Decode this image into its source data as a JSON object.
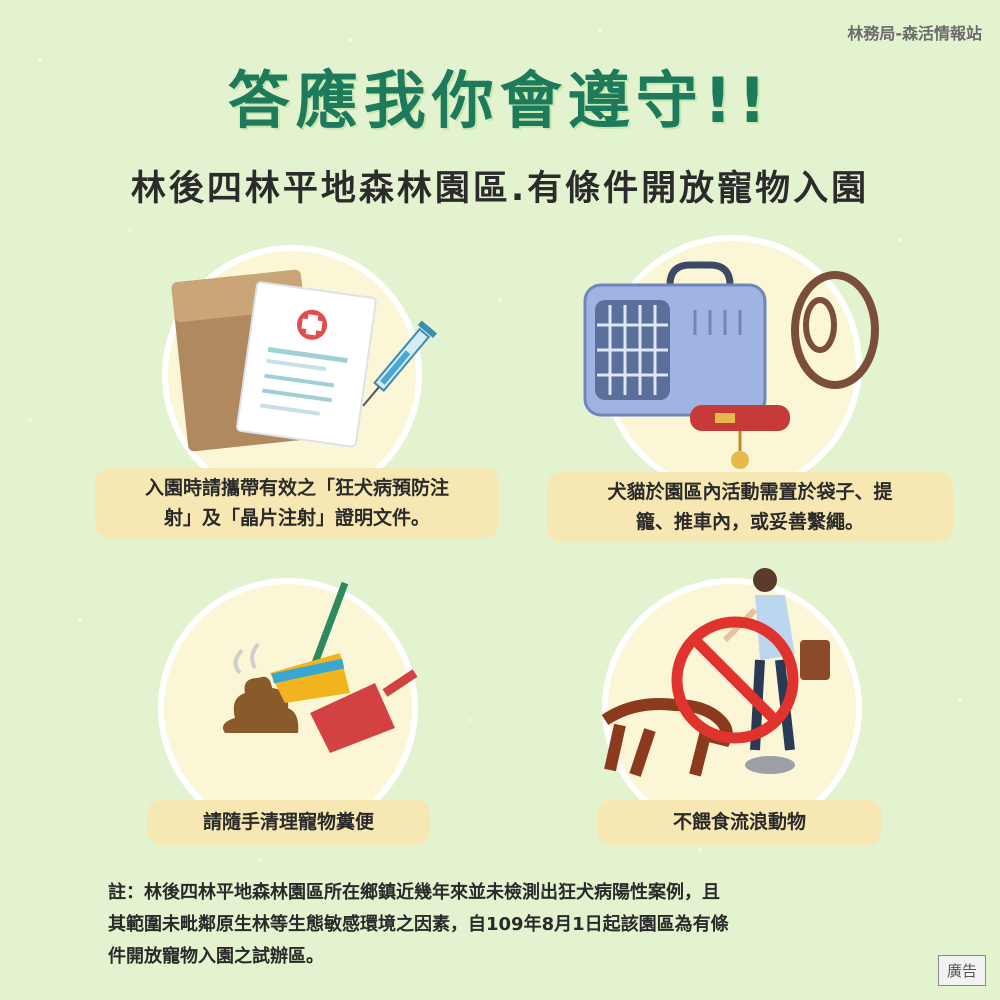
{
  "source_label": "林務局-森活情報站",
  "main_title": "答應我你會遵守!!",
  "subtitle": "林後四林平地森林園區.有條件開放寵物入園",
  "rules": [
    {
      "line1": "入園時請攜帶有效之「狂犬病預防注",
      "line2": "射」及「晶片注射」證明文件。",
      "icon": "vaccine-document-icon"
    },
    {
      "line1": "犬貓於園區內活動需置於袋子、提",
      "line2": "籠、推車內，或妥善繫繩。",
      "icon": "pet-carrier-leash-icon"
    },
    {
      "line1": "請隨手清理寵物糞便",
      "line2": "",
      "icon": "poop-broom-dustpan-icon"
    },
    {
      "line1": "不餵食流浪動物",
      "line2": "",
      "icon": "no-feeding-stray-icon"
    }
  ],
  "note": {
    "lines": [
      "註：林後四林平地森林園區所在鄉鎮近幾年來並未檢測出狂犬病陽性案例，且",
      "其範圍未毗鄰原生林等生態敏感環境之因素，自109年8月1日起該園區為有條",
      "件開放寵物入園之試辦區。"
    ]
  },
  "ad_label": "廣告",
  "colors": {
    "background": "#e4f3cf",
    "title": "#1d7a5a",
    "caption_bg": "#f7e7b2",
    "circle_bg": "#fbf7d6",
    "prohibit_red": "#e0332e"
  }
}
